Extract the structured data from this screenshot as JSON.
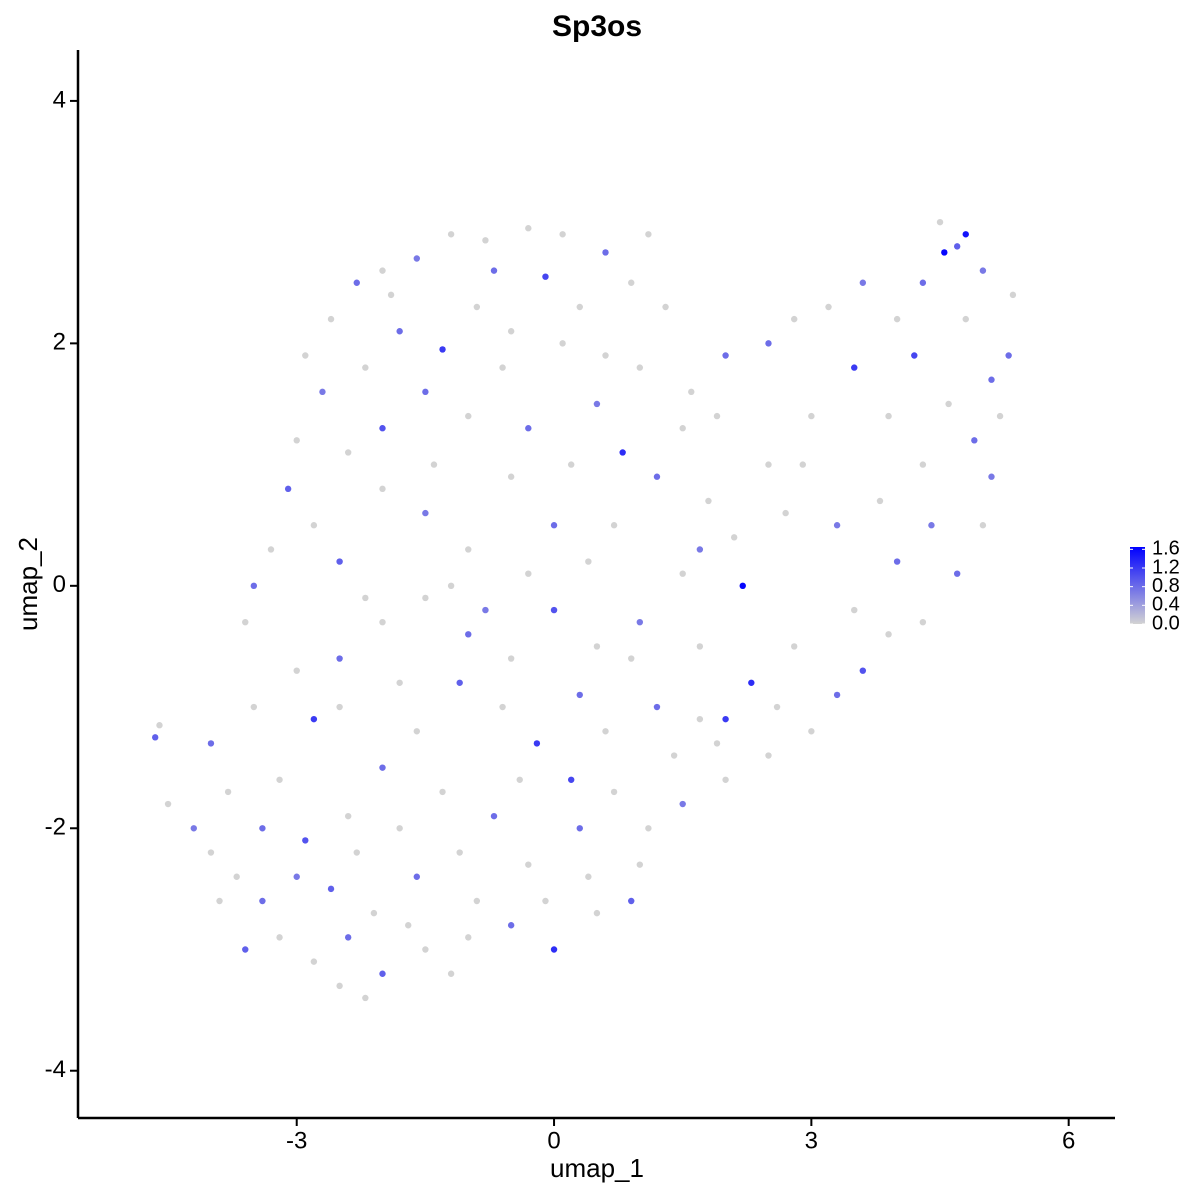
{
  "chart_data": {
    "type": "scatter",
    "title": "Sp3os",
    "x_label": "umap_1",
    "y_label": "umap_2",
    "xlim": [
      -5.55,
      6.54
    ],
    "ylim": [
      -4.39,
      4.42
    ],
    "xticks": [
      -3,
      0,
      3,
      6
    ],
    "yticks": [
      -4,
      -2,
      0,
      2,
      4
    ],
    "color_low": "#d3d3d3",
    "color_high": "#0000ff",
    "colorlim": [
      0,
      1.65
    ],
    "colorticks": [
      {
        "value": 0,
        "label": "0.0"
      },
      0.4,
      0.8,
      1.2,
      1.6
    ],
    "x": [
      -1.2,
      -0.8,
      -0.3,
      0.1,
      -1.6,
      -2.0,
      -2.3,
      -2.6,
      -2.9,
      -2.7,
      -2.2,
      -1.8,
      -1.3,
      -0.9,
      -0.5,
      -0.1,
      0.3,
      0.6,
      0.9,
      1.1,
      0.5,
      -0.6,
      -1.0,
      -1.5,
      -2.0,
      -2.4,
      -3.0,
      -3.1,
      -2.8,
      -3.3,
      -3.5,
      -3.6,
      -2.0,
      -1.5,
      -1.0,
      -0.5,
      0,
      0.4,
      0.8,
      1.2,
      1.5,
      1.8,
      2.1,
      2.5,
      2.2,
      1.5,
      1.0,
      0.5,
      0,
      -0.5,
      -1,
      -1.5,
      -2.0,
      -2.5,
      -3.0,
      -2.8,
      -3.5,
      -4.0,
      -4.65,
      -4.6,
      -4.5,
      -4.2,
      -4.0,
      -3.7,
      -3.4,
      -3.6,
      -3.2,
      -2.8,
      -2.5,
      -2.2,
      -2.0,
      -1.5,
      -1.0,
      -0.5,
      0,
      0.5,
      0.9,
      1.0,
      1.1,
      1.5,
      2.0,
      2.5,
      2.0,
      2.3,
      3.0,
      3.3,
      3.6,
      3.9,
      4.3,
      4.7,
      5.0,
      5.1,
      5.2,
      5.3,
      5.35,
      5.0,
      4.7,
      4.5,
      4.55,
      4.8,
      4.3,
      4.0,
      3.6,
      3.2,
      2.8,
      2.5,
      2.0,
      1.6,
      3.5,
      4.2,
      4.6,
      4.9,
      4.3,
      3.8,
      3.3,
      3.0,
      2.7,
      4.0,
      3.5,
      2.8,
      1.7,
      1.2,
      0.6,
      0.2,
      -0.2,
      -0.6,
      -1.1,
      -1.6,
      -2.0,
      -2.4,
      -2.9,
      -3.2,
      -3.4,
      -2.6,
      -2.1,
      -1.6,
      -1.1,
      -0.7,
      -0.3,
      0.3,
      0.7,
      -0.1,
      -1.3,
      -1.8,
      -2.5,
      -1.8,
      -0.8,
      0.3,
      0.9,
      1.4,
      1.9,
      2.6,
      -2.3,
      -3.0,
      -3.8,
      -3.9,
      -1.2,
      -1.4,
      -1.9,
      -0.3,
      0.2,
      1.0,
      1.3,
      0.1,
      -0.7,
      -2.5,
      -2.2,
      -1.2,
      -0.3,
      0.7,
      1.7,
      2.9,
      3.9,
      4.4,
      4.8,
      5.1,
      1.9,
      0.6,
      -1.7,
      -2.4,
      -0.9,
      0.4,
      -0.4,
      1.7
    ],
    "y": [
      2.9,
      2.85,
      2.95,
      2.9,
      2.7,
      2.6,
      2.5,
      2.2,
      1.9,
      1.6,
      1.8,
      2.1,
      1.95,
      2.3,
      2.1,
      2.55,
      2.3,
      2.75,
      2.5,
      2.9,
      1.5,
      1.8,
      1.4,
      1.6,
      1.3,
      1.1,
      1.2,
      0.8,
      0.5,
      0.3,
      0,
      -0.3,
      0.8,
      0.6,
      0.3,
      0.9,
      0.5,
      0.2,
      1.1,
      0.9,
      1.3,
      0.7,
      0.4,
      1.0,
      0,
      0.1,
      -0.3,
      -0.5,
      -0.2,
      -0.6,
      -0.4,
      -0.1,
      -0.3,
      -0.6,
      -0.7,
      -1.1,
      -1.0,
      -1.3,
      -1.25,
      -1.15,
      -1.8,
      -2.0,
      -2.2,
      -2.4,
      -2.6,
      -3.0,
      -2.9,
      -3.1,
      -3.3,
      -3.4,
      -3.2,
      -3.0,
      -2.9,
      -2.8,
      -3.0,
      -2.7,
      -2.6,
      -2.3,
      -2.0,
      -1.8,
      -1.6,
      -1.4,
      -1.1,
      -0.8,
      -1.2,
      -0.9,
      -0.7,
      -0.4,
      -0.3,
      0.1,
      0.5,
      0.9,
      1.4,
      1.9,
      2.4,
      2.6,
      2.8,
      3.0,
      2.75,
      2.9,
      2.5,
      2.2,
      2.5,
      2.3,
      2.2,
      2.0,
      1.9,
      1.6,
      1.8,
      1.9,
      1.5,
      1.2,
      1.0,
      0.7,
      0.5,
      1.4,
      0.6,
      0.2,
      -0.2,
      -0.5,
      -0.5,
      -1.0,
      -1.2,
      -1.6,
      -1.3,
      -1.0,
      -0.8,
      -1.2,
      -1.5,
      -1.9,
      -2.1,
      -1.6,
      -2.0,
      -2.5,
      -2.7,
      -2.4,
      -2.2,
      -1.9,
      -2.3,
      -2.0,
      -1.7,
      -2.6,
      -1.7,
      -2.0,
      -1.0,
      -0.8,
      -0.2,
      -0.9,
      -0.6,
      -1.4,
      -1.3,
      -1.0,
      -2.2,
      -2.4,
      -1.7,
      -2.6,
      -3.2,
      1.0,
      2.4,
      1.3,
      1.0,
      1.8,
      2.3,
      2.0,
      2.6,
      0.2,
      -0.1,
      0.0,
      0.1,
      0.5,
      0.3,
      1.0,
      1.4,
      0.5,
      2.2,
      1.7,
      1.4,
      1.9,
      -2.8,
      -2.9,
      -2.6,
      -2.4,
      -1.6,
      -1.1
    ],
    "values": [
      0,
      0,
      0,
      0,
      0.7,
      0,
      0.8,
      0,
      0,
      0.7,
      0,
      0.8,
      1.2,
      0,
      0,
      1.1,
      0,
      0.8,
      0,
      0,
      0.7,
      0,
      0,
      0.8,
      1.0,
      0,
      0,
      0.9,
      0,
      0,
      0.8,
      0,
      0,
      0.7,
      0,
      0,
      0.8,
      0,
      1.3,
      0.8,
      0,
      0,
      0,
      0,
      1.6,
      0,
      0.7,
      0,
      1.0,
      0,
      0.8,
      0,
      0,
      0.8,
      0,
      1.2,
      0,
      0.8,
      0.9,
      0,
      0,
      0.7,
      0,
      0,
      0.8,
      0.9,
      0,
      0,
      0,
      0,
      0.9,
      0,
      0,
      0.8,
      1.3,
      0,
      0.9,
      0,
      0,
      0.7,
      0,
      0,
      1.2,
      1.3,
      0,
      0.8,
      1.0,
      0,
      0,
      0.8,
      0,
      0.7,
      0,
      0.8,
      0,
      0.7,
      0.9,
      0,
      1.6,
      1.5,
      0.8,
      0,
      0.7,
      0,
      0,
      0.8,
      0.8,
      0,
      1.2,
      1.1,
      0,
      0.8,
      0,
      0,
      0.7,
      0,
      0,
      0.8,
      0,
      0,
      0,
      0.8,
      0,
      1.1,
      1.2,
      0,
      0.9,
      0,
      0.8,
      0,
      1.0,
      0,
      0.8,
      0.9,
      0,
      0.8,
      0,
      0.8,
      0,
      0.8,
      0,
      0,
      0,
      0,
      0,
      0,
      0.7,
      0.8,
      0,
      0,
      0,
      0,
      0,
      0.7,
      0,
      0,
      0,
      0,
      0,
      0.8,
      0,
      0,
      0,
      0,
      0.8,
      0.9,
      0,
      0,
      0,
      0,
      0.7,
      0,
      0,
      0.7,
      0,
      0.8,
      0,
      0,
      0,
      0.8,
      0,
      0,
      0,
      0
    ]
  }
}
